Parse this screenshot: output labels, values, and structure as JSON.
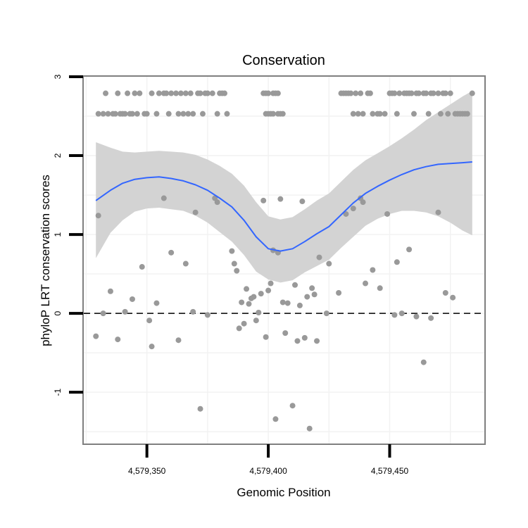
{
  "chart_data": {
    "type": "scatter",
    "title": "Conservation",
    "xlabel": "Genomic Position",
    "ylabel": "phyloP LRT conservation scores",
    "xlim": [
      4579324,
      4579489
    ],
    "ylim": [
      -1.65,
      3.0
    ],
    "x_ticks": [
      {
        "value": 4579350,
        "label": "4,579,350"
      },
      {
        "value": 4579400,
        "label": "4,579,400"
      },
      {
        "value": 4579450,
        "label": "4,579,450"
      }
    ],
    "y_ticks": [
      {
        "value": -1,
        "label": "-1"
      },
      {
        "value": 0,
        "label": "0"
      },
      {
        "value": 1,
        "label": "1"
      },
      {
        "value": 2,
        "label": "2"
      },
      {
        "value": 3,
        "label": "3"
      }
    ],
    "reference_line": {
      "y": 0,
      "style": "dashed"
    },
    "grid": true,
    "colors": {
      "points": "#999999",
      "smooth_line": "#3366ff",
      "confidence_band": "#d3d3d3",
      "panel_border": "#7f7f7f",
      "reference_line": "#000000"
    },
    "points": [
      {
        "x": 4579330,
        "y": 2.53
      },
      {
        "x": 4579332,
        "y": 2.53
      },
      {
        "x": 4579333,
        "y": 2.79
      },
      {
        "x": 4579334,
        "y": 2.53
      },
      {
        "x": 4579336,
        "y": 2.53
      },
      {
        "x": 4579337,
        "y": 2.53
      },
      {
        "x": 4579338,
        "y": 2.79
      },
      {
        "x": 4579339,
        "y": 2.53
      },
      {
        "x": 4579340,
        "y": 2.53
      },
      {
        "x": 4579341,
        "y": 2.53
      },
      {
        "x": 4579342,
        "y": 2.79
      },
      {
        "x": 4579343,
        "y": 2.53
      },
      {
        "x": 4579344,
        "y": 2.53
      },
      {
        "x": 4579345,
        "y": 2.79
      },
      {
        "x": 4579346,
        "y": 2.53
      },
      {
        "x": 4579347,
        "y": 2.79
      },
      {
        "x": 4579349,
        "y": 2.53
      },
      {
        "x": 4579350,
        "y": 2.53
      },
      {
        "x": 4579352,
        "y": 2.79
      },
      {
        "x": 4579354,
        "y": 2.53
      },
      {
        "x": 4579355,
        "y": 2.79
      },
      {
        "x": 4579357,
        "y": 2.79
      },
      {
        "x": 4579358,
        "y": 2.79
      },
      {
        "x": 4579359,
        "y": 2.53
      },
      {
        "x": 4579360,
        "y": 2.79
      },
      {
        "x": 4579362,
        "y": 2.79
      },
      {
        "x": 4579363,
        "y": 2.53
      },
      {
        "x": 4579364,
        "y": 2.79
      },
      {
        "x": 4579365,
        "y": 2.53
      },
      {
        "x": 4579366,
        "y": 2.79
      },
      {
        "x": 4579367,
        "y": 2.53
      },
      {
        "x": 4579368,
        "y": 2.79
      },
      {
        "x": 4579369,
        "y": 2.53
      },
      {
        "x": 4579371,
        "y": 2.79
      },
      {
        "x": 4579372,
        "y": 2.79
      },
      {
        "x": 4579373,
        "y": 2.53
      },
      {
        "x": 4579374,
        "y": 2.79
      },
      {
        "x": 4579375,
        "y": 2.79
      },
      {
        "x": 4579377,
        "y": 2.79
      },
      {
        "x": 4579379,
        "y": 2.53
      },
      {
        "x": 4579380,
        "y": 2.79
      },
      {
        "x": 4579381,
        "y": 2.79
      },
      {
        "x": 4579382,
        "y": 2.79
      },
      {
        "x": 4579383,
        "y": 2.53
      },
      {
        "x": 4579398,
        "y": 2.79
      },
      {
        "x": 4579399,
        "y": 2.53
      },
      {
        "x": 4579399,
        "y": 2.79
      },
      {
        "x": 4579400,
        "y": 2.53
      },
      {
        "x": 4579400,
        "y": 2.79
      },
      {
        "x": 4579401,
        "y": 2.53
      },
      {
        "x": 4579402,
        "y": 2.79
      },
      {
        "x": 4579402,
        "y": 2.53
      },
      {
        "x": 4579403,
        "y": 2.79
      },
      {
        "x": 4579404,
        "y": 2.53
      },
      {
        "x": 4579404,
        "y": 2.79
      },
      {
        "x": 4579405,
        "y": 2.53
      },
      {
        "x": 4579406,
        "y": 2.53
      },
      {
        "x": 4579430,
        "y": 2.79
      },
      {
        "x": 4579431,
        "y": 2.79
      },
      {
        "x": 4579432,
        "y": 2.79
      },
      {
        "x": 4579433,
        "y": 2.79
      },
      {
        "x": 4579434,
        "y": 2.79
      },
      {
        "x": 4579435,
        "y": 2.53
      },
      {
        "x": 4579436,
        "y": 2.79
      },
      {
        "x": 4579437,
        "y": 2.53
      },
      {
        "x": 4579438,
        "y": 2.79
      },
      {
        "x": 4579439,
        "y": 2.53
      },
      {
        "x": 4579441,
        "y": 2.79
      },
      {
        "x": 4579442,
        "y": 2.79
      },
      {
        "x": 4579443,
        "y": 2.53
      },
      {
        "x": 4579445,
        "y": 2.53
      },
      {
        "x": 4579446,
        "y": 2.53
      },
      {
        "x": 4579448,
        "y": 2.53
      },
      {
        "x": 4579450,
        "y": 2.79
      },
      {
        "x": 4579451,
        "y": 2.79
      },
      {
        "x": 4579452,
        "y": 2.79
      },
      {
        "x": 4579453,
        "y": 2.53
      },
      {
        "x": 4579454,
        "y": 2.79
      },
      {
        "x": 4579456,
        "y": 2.79
      },
      {
        "x": 4579457,
        "y": 2.79
      },
      {
        "x": 4579458,
        "y": 2.79
      },
      {
        "x": 4579459,
        "y": 2.79
      },
      {
        "x": 4579460,
        "y": 2.53
      },
      {
        "x": 4579461,
        "y": 2.79
      },
      {
        "x": 4579462,
        "y": 2.79
      },
      {
        "x": 4579464,
        "y": 2.79
      },
      {
        "x": 4579465,
        "y": 2.79
      },
      {
        "x": 4579466,
        "y": 2.53
      },
      {
        "x": 4579467,
        "y": 2.79
      },
      {
        "x": 4579468,
        "y": 2.79
      },
      {
        "x": 4579470,
        "y": 2.79
      },
      {
        "x": 4579471,
        "y": 2.53
      },
      {
        "x": 4579472,
        "y": 2.79
      },
      {
        "x": 4579473,
        "y": 2.79
      },
      {
        "x": 4579474,
        "y": 2.53
      },
      {
        "x": 4579475,
        "y": 2.79
      },
      {
        "x": 4579477,
        "y": 2.53
      },
      {
        "x": 4579478,
        "y": 2.53
      },
      {
        "x": 4579479,
        "y": 2.53
      },
      {
        "x": 4579480,
        "y": 2.53
      },
      {
        "x": 4579481,
        "y": 2.53
      },
      {
        "x": 4579482,
        "y": 2.53
      },
      {
        "x": 4579484,
        "y": 2.79
      },
      {
        "x": 4579330,
        "y": 1.24
      },
      {
        "x": 4579329,
        "y": -0.29
      },
      {
        "x": 4579332,
        "y": 0.0
      },
      {
        "x": 4579335,
        "y": 0.28
      },
      {
        "x": 4579338,
        "y": -0.33
      },
      {
        "x": 4579341,
        "y": 0.02
      },
      {
        "x": 4579344,
        "y": 0.18
      },
      {
        "x": 4579348,
        "y": 0.59
      },
      {
        "x": 4579351,
        "y": -0.09
      },
      {
        "x": 4579352,
        "y": -0.42
      },
      {
        "x": 4579354,
        "y": 0.13
      },
      {
        "x": 4579357,
        "y": 1.46
      },
      {
        "x": 4579360,
        "y": 0.77
      },
      {
        "x": 4579363,
        "y": -0.34
      },
      {
        "x": 4579366,
        "y": 0.63
      },
      {
        "x": 4579369,
        "y": 0.02
      },
      {
        "x": 4579370,
        "y": 1.28
      },
      {
        "x": 4579372,
        "y": -1.21
      },
      {
        "x": 4579375,
        "y": -0.02
      },
      {
        "x": 4579378,
        "y": 1.46
      },
      {
        "x": 4579379,
        "y": 1.41
      },
      {
        "x": 4579385,
        "y": 0.79
      },
      {
        "x": 4579386,
        "y": 0.63
      },
      {
        "x": 4579387,
        "y": 0.54
      },
      {
        "x": 4579388,
        "y": -0.19
      },
      {
        "x": 4579389,
        "y": 0.14
      },
      {
        "x": 4579390,
        "y": -0.13
      },
      {
        "x": 4579391,
        "y": 0.31
      },
      {
        "x": 4579392,
        "y": 0.12
      },
      {
        "x": 4579393,
        "y": 0.19
      },
      {
        "x": 4579394,
        "y": 0.21
      },
      {
        "x": 4579395,
        "y": -0.09
      },
      {
        "x": 4579396,
        "y": 0.01
      },
      {
        "x": 4579397,
        "y": 0.25
      },
      {
        "x": 4579398,
        "y": 1.43
      },
      {
        "x": 4579399,
        "y": -0.3
      },
      {
        "x": 4579400,
        "y": 0.29
      },
      {
        "x": 4579401,
        "y": 0.38
      },
      {
        "x": 4579402,
        "y": 0.8
      },
      {
        "x": 4579403,
        "y": -1.34
      },
      {
        "x": 4579404,
        "y": 0.77
      },
      {
        "x": 4579405,
        "y": 1.45
      },
      {
        "x": 4579406,
        "y": 0.14
      },
      {
        "x": 4579407,
        "y": -0.25
      },
      {
        "x": 4579408,
        "y": 0.13
      },
      {
        "x": 4579410,
        "y": -1.17
      },
      {
        "x": 4579411,
        "y": 0.36
      },
      {
        "x": 4579412,
        "y": -0.35
      },
      {
        "x": 4579413,
        "y": 0.1
      },
      {
        "x": 4579414,
        "y": 1.42
      },
      {
        "x": 4579415,
        "y": -0.31
      },
      {
        "x": 4579416,
        "y": 0.21
      },
      {
        "x": 4579417,
        "y": -1.46
      },
      {
        "x": 4579418,
        "y": 0.32
      },
      {
        "x": 4579419,
        "y": 0.24
      },
      {
        "x": 4579420,
        "y": -0.35
      },
      {
        "x": 4579421,
        "y": 0.71
      },
      {
        "x": 4579424,
        "y": 0.0
      },
      {
        "x": 4579425,
        "y": 0.63
      },
      {
        "x": 4579429,
        "y": 0.26
      },
      {
        "x": 4579432,
        "y": 1.26
      },
      {
        "x": 4579435,
        "y": 1.33
      },
      {
        "x": 4579438,
        "y": 1.46
      },
      {
        "x": 4579439,
        "y": 1.41
      },
      {
        "x": 4579440,
        "y": 0.38
      },
      {
        "x": 4579443,
        "y": 0.55
      },
      {
        "x": 4579446,
        "y": 0.32
      },
      {
        "x": 4579449,
        "y": 1.26
      },
      {
        "x": 4579452,
        "y": -0.02
      },
      {
        "x": 4579453,
        "y": 0.65
      },
      {
        "x": 4579455,
        "y": 0.0
      },
      {
        "x": 4579458,
        "y": 0.81
      },
      {
        "x": 4579461,
        "y": -0.04
      },
      {
        "x": 4579464,
        "y": -0.62
      },
      {
        "x": 4579467,
        "y": -0.06
      },
      {
        "x": 4579470,
        "y": 1.28
      },
      {
        "x": 4579473,
        "y": 0.26
      },
      {
        "x": 4579476,
        "y": 0.2
      }
    ],
    "smooth": [
      {
        "x": 4579329,
        "y": 1.43,
        "lo": 0.7,
        "hi": 2.17
      },
      {
        "x": 4579335,
        "y": 1.56,
        "lo": 1.02,
        "hi": 2.1
      },
      {
        "x": 4579340,
        "y": 1.65,
        "lo": 1.18,
        "hi": 2.05
      },
      {
        "x": 4579345,
        "y": 1.7,
        "lo": 1.29,
        "hi": 2.04
      },
      {
        "x": 4579350,
        "y": 1.72,
        "lo": 1.33,
        "hi": 2.05
      },
      {
        "x": 4579355,
        "y": 1.73,
        "lo": 1.34,
        "hi": 2.06
      },
      {
        "x": 4579360,
        "y": 1.71,
        "lo": 1.32,
        "hi": 2.05
      },
      {
        "x": 4579365,
        "y": 1.68,
        "lo": 1.3,
        "hi": 2.04
      },
      {
        "x": 4579370,
        "y": 1.63,
        "lo": 1.24,
        "hi": 2.01
      },
      {
        "x": 4579375,
        "y": 1.56,
        "lo": 1.15,
        "hi": 1.95
      },
      {
        "x": 4579380,
        "y": 1.46,
        "lo": 1.03,
        "hi": 1.87
      },
      {
        "x": 4579385,
        "y": 1.35,
        "lo": 0.91,
        "hi": 1.77
      },
      {
        "x": 4579390,
        "y": 1.18,
        "lo": 0.74,
        "hi": 1.62
      },
      {
        "x": 4579395,
        "y": 0.97,
        "lo": 0.53,
        "hi": 1.41
      },
      {
        "x": 4579400,
        "y": 0.82,
        "lo": 0.43,
        "hi": 1.23
      },
      {
        "x": 4579405,
        "y": 0.79,
        "lo": 0.39,
        "hi": 1.19
      },
      {
        "x": 4579410,
        "y": 0.82,
        "lo": 0.42,
        "hi": 1.22
      },
      {
        "x": 4579415,
        "y": 0.91,
        "lo": 0.52,
        "hi": 1.32
      },
      {
        "x": 4579420,
        "y": 1.01,
        "lo": 0.6,
        "hi": 1.43
      },
      {
        "x": 4579425,
        "y": 1.1,
        "lo": 0.68,
        "hi": 1.52
      },
      {
        "x": 4579430,
        "y": 1.25,
        "lo": 0.83,
        "hi": 1.67
      },
      {
        "x": 4579435,
        "y": 1.4,
        "lo": 0.97,
        "hi": 1.82
      },
      {
        "x": 4579440,
        "y": 1.52,
        "lo": 1.11,
        "hi": 1.94
      },
      {
        "x": 4579445,
        "y": 1.61,
        "lo": 1.2,
        "hi": 2.03
      },
      {
        "x": 4579450,
        "y": 1.69,
        "lo": 1.26,
        "hi": 2.12
      },
      {
        "x": 4579455,
        "y": 1.76,
        "lo": 1.3,
        "hi": 2.22
      },
      {
        "x": 4579460,
        "y": 1.82,
        "lo": 1.3,
        "hi": 2.33
      },
      {
        "x": 4579465,
        "y": 1.86,
        "lo": 1.28,
        "hi": 2.45
      },
      {
        "x": 4579470,
        "y": 1.89,
        "lo": 1.23,
        "hi": 2.55
      },
      {
        "x": 4579475,
        "y": 1.9,
        "lo": 1.15,
        "hi": 2.65
      },
      {
        "x": 4579480,
        "y": 1.91,
        "lo": 1.05,
        "hi": 2.75
      },
      {
        "x": 4579484,
        "y": 1.92,
        "lo": 0.99,
        "hi": 2.82
      }
    ]
  }
}
